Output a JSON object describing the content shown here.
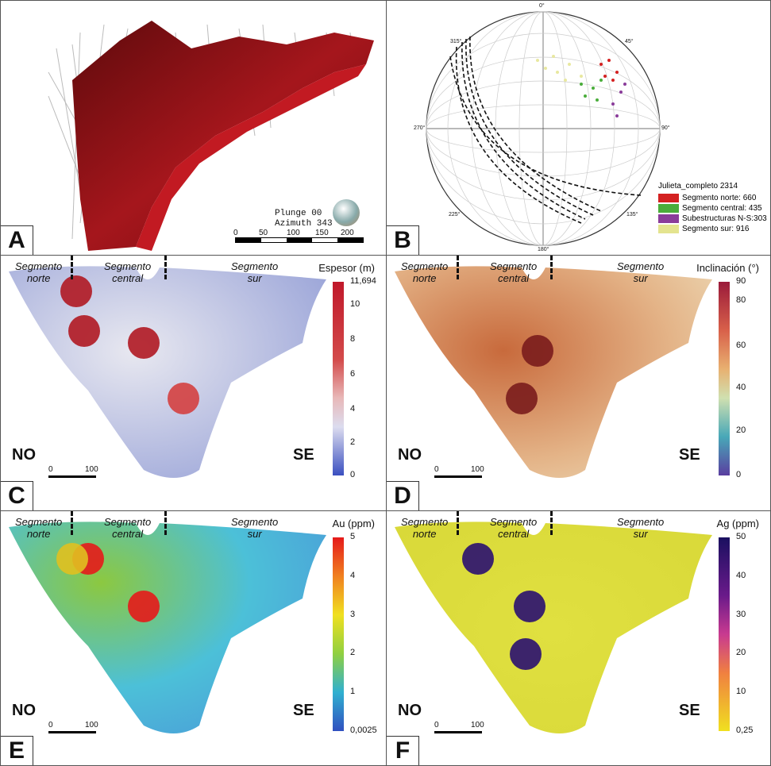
{
  "panels": {
    "A": {
      "label": "A",
      "plunge": "Plunge 00",
      "azimuth": "Azimuth 343",
      "scale": [
        "0",
        "50",
        "100",
        "150",
        "200"
      ]
    },
    "B": {
      "label": "B",
      "directions": [
        "0°",
        "45°",
        "90°",
        "135°",
        "180°",
        "225°",
        "270°",
        "315°"
      ],
      "legend_title": "Julieta_completo 2314",
      "legend": [
        {
          "name": "Segmento norte: 660",
          "color": "#d42121"
        },
        {
          "name": "Segmento central: 435",
          "color": "#4aad3b"
        },
        {
          "name": "Subestructuras N-S:303",
          "color": "#8a3c9a"
        },
        {
          "name": "Segmento sur: 916",
          "color": "#e4e48f"
        }
      ]
    },
    "C": {
      "label": "C",
      "colorbar_title": "Espesor (m)",
      "ticks": [
        "11,694",
        "10",
        "8",
        "6",
        "4",
        "2",
        "0"
      ]
    },
    "D": {
      "label": "D",
      "colorbar_title": "Inclinación (°)",
      "ticks": [
        "90",
        "80",
        "60",
        "40",
        "20",
        "0"
      ]
    },
    "E": {
      "label": "E",
      "colorbar_title": "Au (ppm)",
      "ticks": [
        "5",
        "4",
        "3",
        "2",
        "1",
        "0,0025"
      ]
    },
    "F": {
      "label": "F",
      "colorbar_title": "Ag (ppm)",
      "ticks": [
        "50",
        "40",
        "30",
        "20",
        "10",
        "0,25"
      ]
    }
  },
  "segments": {
    "norte": "Segmento norte",
    "central": "Segmento central",
    "sur": "Segmento sur"
  },
  "segment_lines": {
    "norte": [
      "Segmento",
      "norte"
    ],
    "central": [
      "Segmento",
      "central"
    ],
    "sur": [
      "Segmento",
      "sur"
    ]
  },
  "dir_left": "NO",
  "dir_right": "SE",
  "map_scale": {
    "zero": "0",
    "hundred": "100"
  }
}
